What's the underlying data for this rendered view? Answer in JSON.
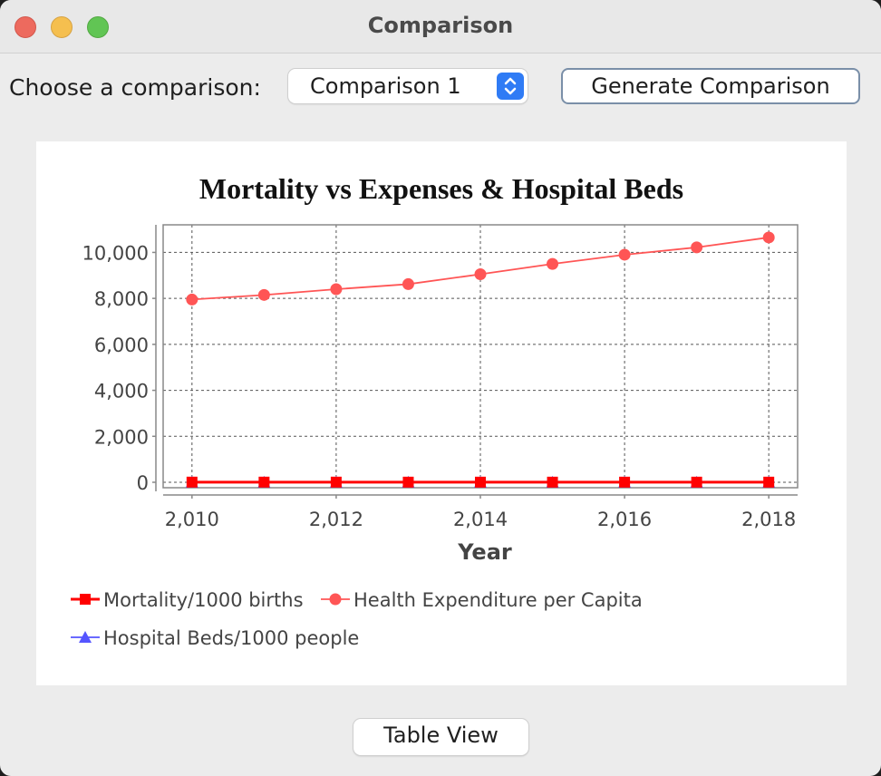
{
  "window": {
    "title": "Comparison"
  },
  "controls": {
    "choose_label": "Choose a comparison:",
    "selected_comparison": "Comparison 1",
    "generate_label": "Generate Comparison",
    "table_view_label": "Table View"
  },
  "chart_data": {
    "type": "line",
    "title": "Mortality vs Expenses & Hospital Beds",
    "xlabel": "Year",
    "ylabel": "",
    "x": [
      2010,
      2011,
      2012,
      2013,
      2014,
      2015,
      2016,
      2017,
      2018
    ],
    "xlim": [
      2009.6,
      2018.4
    ],
    "ylim": [
      0,
      11200
    ],
    "x_ticks": [
      2010,
      2012,
      2014,
      2016,
      2018
    ],
    "x_tick_labels": [
      "2,010",
      "2,012",
      "2,014",
      "2,016",
      "2,018"
    ],
    "y_ticks": [
      0,
      2000,
      4000,
      6000,
      8000,
      10000
    ],
    "y_tick_labels": [
      "0",
      "2,000",
      "4,000",
      "6,000",
      "8,000",
      "10,000"
    ],
    "grid": true,
    "legend_position": "bottom",
    "series": [
      {
        "name": "Mortality/1000 births",
        "color": "#ff0000",
        "marker": "square",
        "values": [
          7,
          7,
          7,
          6,
          6,
          6,
          6,
          6,
          6
        ]
      },
      {
        "name": "Health Expenditure per Capita",
        "color": "#ff5555",
        "marker": "circle",
        "values": [
          7950,
          8150,
          8400,
          8620,
          9050,
          9500,
          9900,
          10220,
          10650
        ]
      },
      {
        "name": "Hospital Beds/1000 people",
        "color": "#5555ff",
        "marker": "triangle",
        "values": [
          3,
          3,
          3,
          3,
          3,
          3,
          3,
          3,
          3
        ]
      }
    ]
  }
}
